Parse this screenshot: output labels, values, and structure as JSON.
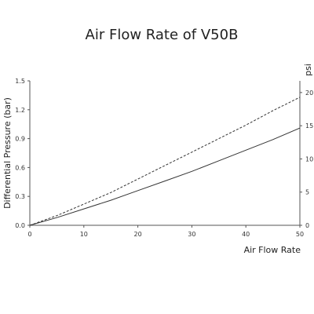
{
  "chart_data": {
    "type": "line",
    "title": "Air Flow Rate of V50B",
    "xlabel": "Air Flow Rate",
    "ylabel": "Differential Pressure (bar)",
    "y2label": "psi",
    "xlim": [
      0,
      50
    ],
    "ylim": [
      0,
      1.5
    ],
    "y2lim": [
      0,
      21.76
    ],
    "x_ticks": [
      "0",
      "10",
      "20",
      "30",
      "40",
      "50"
    ],
    "y_ticks": [
      "0.0",
      "0.3",
      "0.6",
      "0.9",
      "1.2",
      "1.5"
    ],
    "y2_ticks": [
      "0",
      "5",
      "10",
      "15",
      "20"
    ],
    "grid": false,
    "series": [
      {
        "style": "solid",
        "color": "#333333",
        "x": [
          0,
          5,
          10,
          15,
          20,
          25,
          30,
          35,
          40,
          45,
          50
        ],
        "y": [
          0,
          0.08,
          0.17,
          0.26,
          0.36,
          0.46,
          0.56,
          0.67,
          0.78,
          0.89,
          1.01
        ]
      },
      {
        "style": "dashed",
        "color": "#333333",
        "x": [
          0,
          5,
          10,
          15,
          20,
          25,
          30,
          35,
          40,
          45,
          50
        ],
        "y": [
          0,
          0.1,
          0.22,
          0.34,
          0.48,
          0.62,
          0.76,
          0.9,
          1.04,
          1.19,
          1.33
        ]
      }
    ]
  }
}
